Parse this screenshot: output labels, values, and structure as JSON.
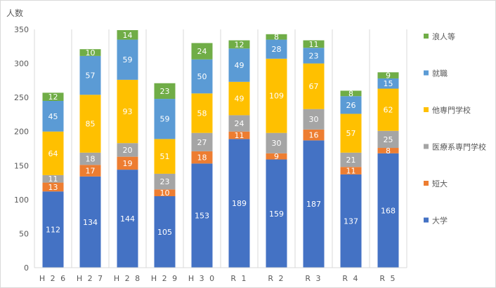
{
  "chart_data": {
    "type": "bar",
    "stacked": true,
    "ylabel": "人数",
    "ylim": [
      0,
      350
    ],
    "yticks": [
      0,
      50,
      100,
      150,
      200,
      250,
      300,
      350
    ],
    "categories": [
      "H26",
      "H27",
      "H28",
      "H29",
      "H30",
      "R1",
      "R2",
      "R3",
      "R4",
      "R5"
    ],
    "category_labels": [
      "H 2 6",
      "H 2 7",
      "H 2 8",
      "H 2 9",
      "H 3 0",
      "R 1",
      "R 2",
      "R 3",
      "R 4",
      "R 5"
    ],
    "series": [
      {
        "name": "大学",
        "color": "#4472c4",
        "values": [
          112,
          134,
          144,
          105,
          153,
          189,
          159,
          187,
          137,
          168
        ]
      },
      {
        "name": "短大",
        "color": "#ed7d31",
        "values": [
          13,
          17,
          19,
          10,
          18,
          11,
          9,
          16,
          11,
          8
        ]
      },
      {
        "name": "医療系専門学校",
        "color": "#a5a5a5",
        "values": [
          11,
          18,
          20,
          23,
          27,
          24,
          30,
          30,
          21,
          25
        ]
      },
      {
        "name": "他専門学校",
        "color": "#ffc000",
        "values": [
          64,
          85,
          93,
          51,
          58,
          49,
          109,
          67,
          57,
          62
        ]
      },
      {
        "name": "就職",
        "color": "#5b9bd5",
        "values": [
          45,
          57,
          59,
          59,
          50,
          49,
          28,
          23,
          26,
          15
        ]
      },
      {
        "name": "浪人等",
        "color": "#70ad47",
        "values": [
          12,
          10,
          14,
          23,
          24,
          12,
          8,
          11,
          8,
          9
        ]
      }
    ],
    "grid": "vertical",
    "legend": "right"
  }
}
